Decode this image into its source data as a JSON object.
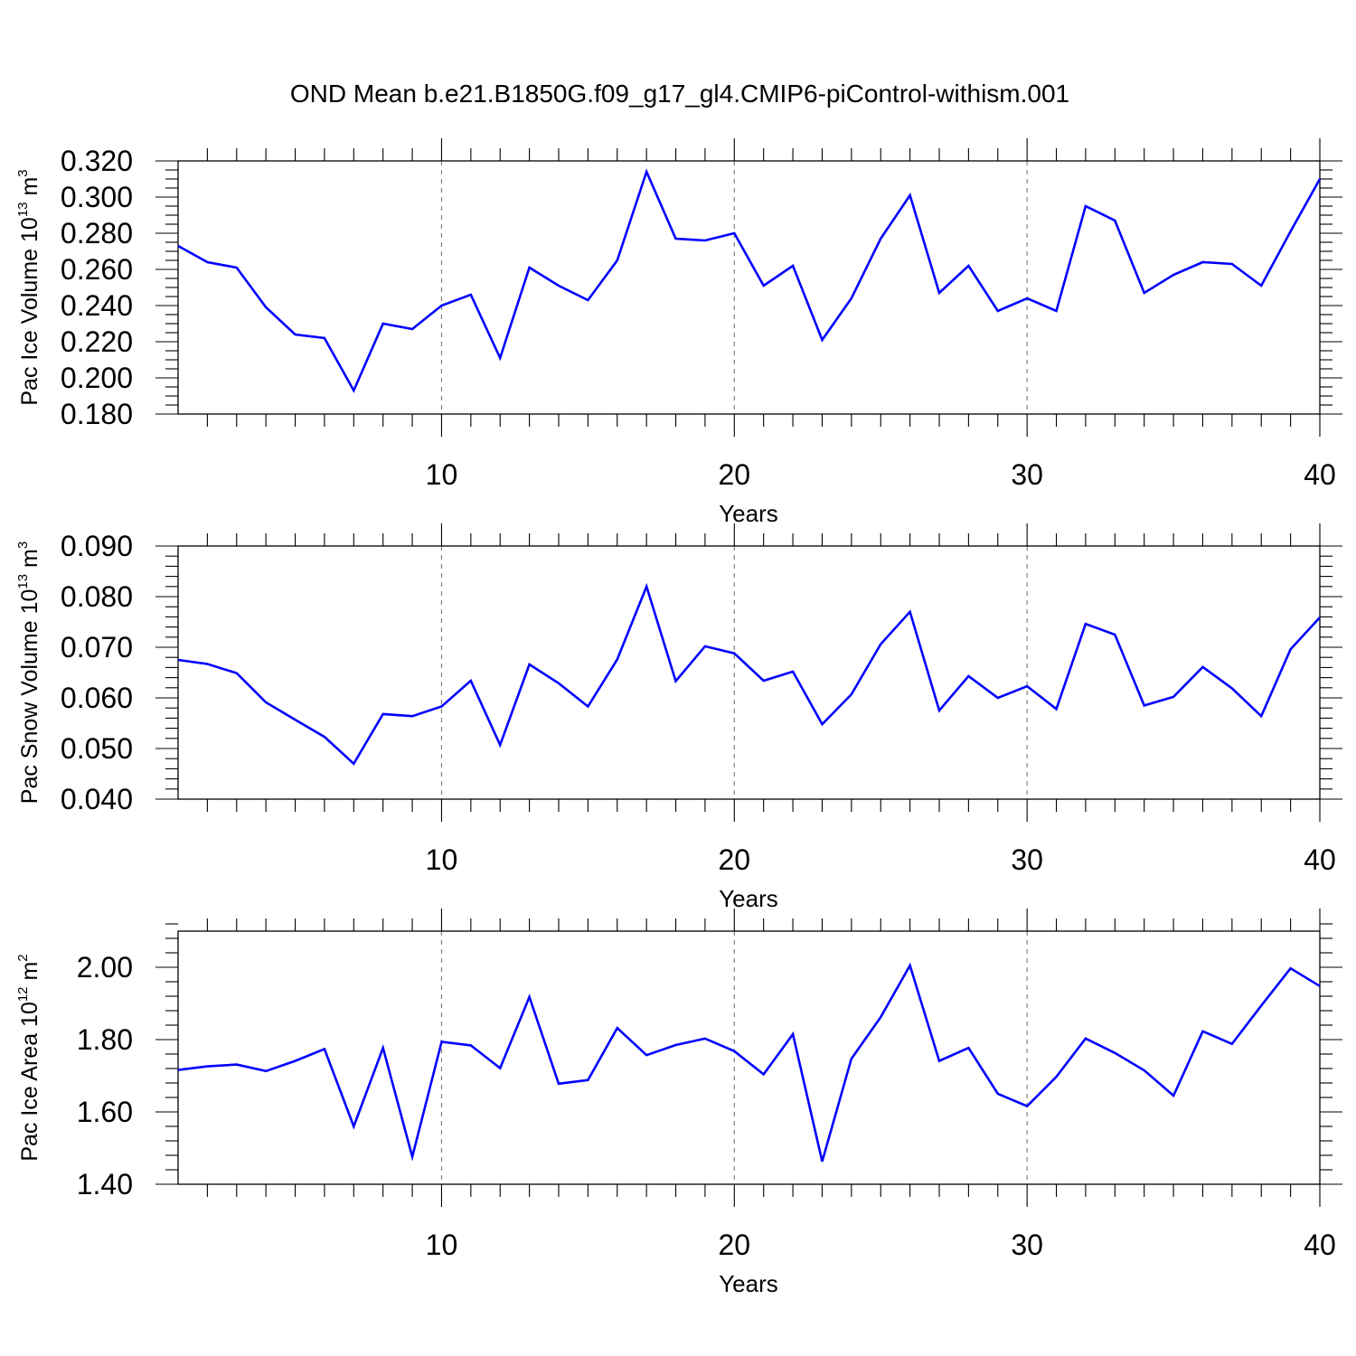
{
  "title": "OND Mean b.e21.B1850G.f09_g17_gl4.CMIP6-piControl-withism.001",
  "colors": {
    "series": "#0000ff",
    "grid": "#808080",
    "axis": "#000000"
  },
  "chart_data": [
    {
      "type": "line",
      "title": "OND Mean b.e21.B1850G.f09_g17_gl4.CMIP6-piControl-withism.001",
      "xlabel": "Years",
      "ylabel": "Pac Ice Volume 10",
      "ylabel_exp": "13",
      "ylabel_unit": " m",
      "ylabel_unit_exp": "3",
      "xlim": [
        1,
        40
      ],
      "ylim": [
        0.18,
        0.32
      ],
      "xticks": [
        10,
        20,
        30,
        40
      ],
      "yticks": [
        0.18,
        0.2,
        0.22,
        0.24,
        0.26,
        0.28,
        0.3,
        0.32
      ],
      "ytick_labels": [
        "0.180",
        "0.200",
        "0.220",
        "0.240",
        "0.260",
        "0.280",
        "0.300",
        "0.320"
      ],
      "y_minor_step": 0.005,
      "grid": "dashed vertical at major x ticks",
      "x": [
        1,
        2,
        3,
        4,
        5,
        6,
        7,
        8,
        9,
        10,
        11,
        12,
        13,
        14,
        15,
        16,
        17,
        18,
        19,
        20,
        21,
        22,
        23,
        24,
        25,
        26,
        27,
        28,
        29,
        30,
        31,
        32,
        33,
        34,
        35,
        36,
        37,
        38,
        39,
        40
      ],
      "series": [
        {
          "values": [
            0.273,
            0.264,
            0.261,
            0.239,
            0.224,
            0.222,
            0.193,
            0.23,
            0.227,
            0.24,
            0.246,
            0.211,
            0.261,
            0.251,
            0.243,
            0.265,
            0.314,
            0.277,
            0.276,
            0.28,
            0.251,
            0.262,
            0.221,
            0.244,
            0.277,
            0.301,
            0.247,
            0.262,
            0.237,
            0.244,
            0.237,
            0.295,
            0.287,
            0.247,
            0.257,
            0.264,
            0.263,
            0.251,
            0.281,
            0.31
          ]
        }
      ]
    },
    {
      "type": "line",
      "xlabel": "Years",
      "ylabel": "Pac Snow Volume 10",
      "ylabel_exp": "13",
      "ylabel_unit": " m",
      "ylabel_unit_exp": "3",
      "xlim": [
        1,
        40
      ],
      "ylim": [
        0.04,
        0.09
      ],
      "xticks": [
        10,
        20,
        30,
        40
      ],
      "yticks": [
        0.04,
        0.05,
        0.06,
        0.07,
        0.08,
        0.09
      ],
      "ytick_labels": [
        "0.040",
        "0.050",
        "0.060",
        "0.070",
        "0.080",
        "0.090"
      ],
      "y_minor_step": 0.002,
      "grid": "dashed vertical at major x ticks",
      "x": [
        1,
        2,
        3,
        4,
        5,
        6,
        7,
        8,
        9,
        10,
        11,
        12,
        13,
        14,
        15,
        16,
        17,
        18,
        19,
        20,
        21,
        22,
        23,
        24,
        25,
        26,
        27,
        28,
        29,
        30,
        31,
        32,
        33,
        34,
        35,
        36,
        37,
        38,
        39,
        40
      ],
      "series": [
        {
          "values": [
            0.0675,
            0.0667,
            0.0649,
            0.0591,
            0.0557,
            0.0523,
            0.047,
            0.0568,
            0.0564,
            0.0583,
            0.0634,
            0.0507,
            0.0666,
            0.0629,
            0.0583,
            0.0676,
            0.082,
            0.0633,
            0.0702,
            0.0688,
            0.0634,
            0.0652,
            0.0548,
            0.0607,
            0.0706,
            0.077,
            0.0575,
            0.0643,
            0.06,
            0.0623,
            0.0578,
            0.0746,
            0.0725,
            0.0585,
            0.0602,
            0.0661,
            0.0619,
            0.0564,
            0.0696,
            0.0759
          ]
        }
      ]
    },
    {
      "type": "line",
      "xlabel": "Years",
      "ylabel": "Pac Ice Area 10",
      "ylabel_exp": "12",
      "ylabel_unit": " m",
      "ylabel_unit_exp": "2",
      "xlim": [
        1,
        40
      ],
      "ylim": [
        1.4,
        2.1
      ],
      "xticks": [
        10,
        20,
        30,
        40
      ],
      "yticks": [
        1.4,
        1.6,
        1.8,
        2.0
      ],
      "ytick_labels": [
        "1.40",
        "1.60",
        "1.80",
        "2.00"
      ],
      "y_minor_step": 0.04,
      "grid": "dashed vertical at major x ticks",
      "x": [
        1,
        2,
        3,
        4,
        5,
        6,
        7,
        8,
        9,
        10,
        11,
        12,
        13,
        14,
        15,
        16,
        17,
        18,
        19,
        20,
        21,
        22,
        23,
        24,
        25,
        26,
        27,
        28,
        29,
        30,
        31,
        32,
        33,
        34,
        35,
        36,
        37,
        38,
        39,
        40
      ],
      "series": [
        {
          "values": [
            1.716,
            1.726,
            1.731,
            1.713,
            1.741,
            1.774,
            1.56,
            1.777,
            1.476,
            1.794,
            1.784,
            1.721,
            1.918,
            1.678,
            1.688,
            1.832,
            1.757,
            1.785,
            1.803,
            1.768,
            1.704,
            1.815,
            1.463,
            1.747,
            1.862,
            2.005,
            1.741,
            1.777,
            1.65,
            1.616,
            1.697,
            1.803,
            1.763,
            1.715,
            1.645,
            1.823,
            1.788,
            1.894,
            1.997,
            1.948
          ]
        }
      ]
    }
  ]
}
